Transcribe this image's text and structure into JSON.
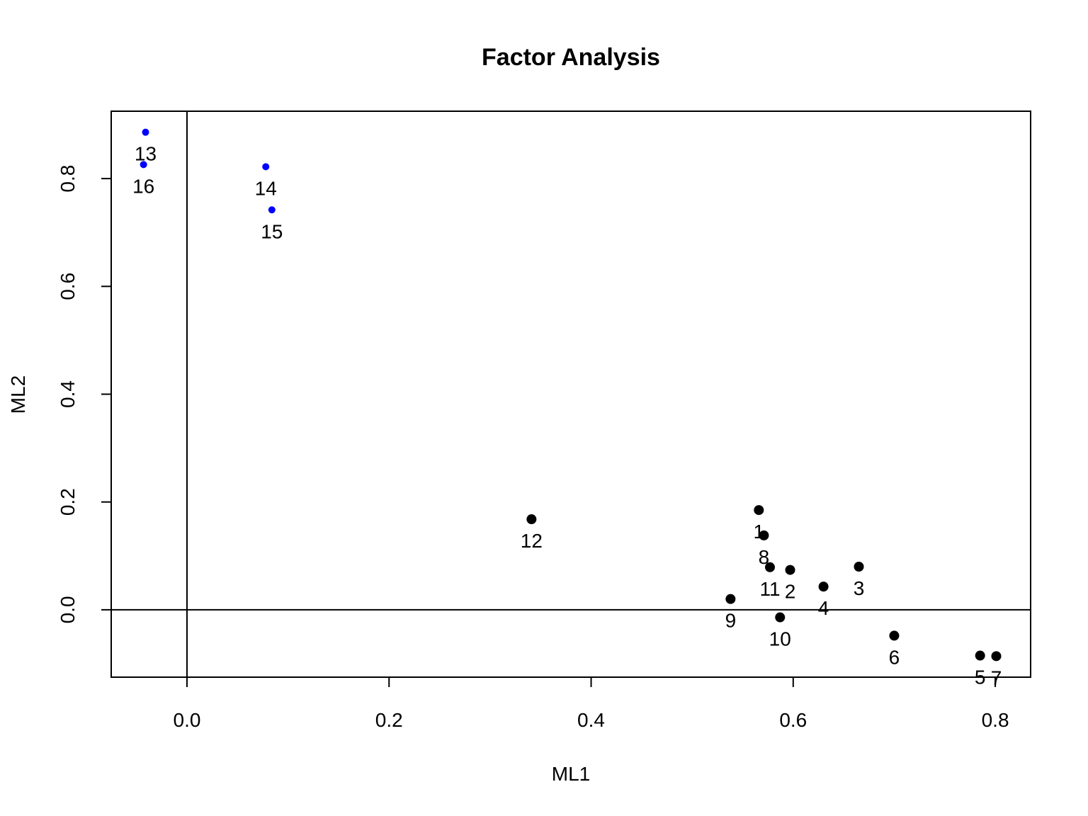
{
  "chart_data": {
    "type": "scatter",
    "title": "Factor Analysis",
    "xlabel": "ML1",
    "ylabel": "ML2",
    "xlim": [
      -0.075,
      0.835
    ],
    "ylim": [
      -0.125,
      0.925
    ],
    "x_ticks": [
      0.0,
      0.2,
      0.4,
      0.6,
      0.8
    ],
    "x_tick_labels": [
      "0.0",
      "0.2",
      "0.4",
      "0.6",
      "0.8"
    ],
    "y_ticks": [
      0.0,
      0.2,
      0.4,
      0.6,
      0.8
    ],
    "y_tick_labels": [
      "0.0",
      "0.2",
      "0.4",
      "0.6",
      "0.8"
    ],
    "reference_lines": {
      "x": 0,
      "y": 0
    },
    "grid": false,
    "colors": {
      "group1": "#000000",
      "group2": "#0000ff",
      "axes": "#000000"
    },
    "points": [
      {
        "label": "1",
        "x": 0.566,
        "y": 0.185,
        "group": "group1"
      },
      {
        "label": "2",
        "x": 0.597,
        "y": 0.074,
        "group": "group1"
      },
      {
        "label": "3",
        "x": 0.665,
        "y": 0.08,
        "group": "group1"
      },
      {
        "label": "4",
        "x": 0.63,
        "y": 0.043,
        "group": "group1"
      },
      {
        "label": "5",
        "x": 0.785,
        "y": -0.085,
        "group": "group1"
      },
      {
        "label": "6",
        "x": 0.7,
        "y": -0.048,
        "group": "group1"
      },
      {
        "label": "7",
        "x": 0.801,
        "y": -0.086,
        "group": "group1"
      },
      {
        "label": "8",
        "x": 0.571,
        "y": 0.138,
        "group": "group1"
      },
      {
        "label": "9",
        "x": 0.538,
        "y": 0.02,
        "group": "group1"
      },
      {
        "label": "10",
        "x": 0.587,
        "y": -0.014,
        "group": "group1"
      },
      {
        "label": "11",
        "x": 0.577,
        "y": 0.079,
        "group": "group1"
      },
      {
        "label": "12",
        "x": 0.341,
        "y": 0.168,
        "group": "group1"
      },
      {
        "label": "13",
        "x": -0.041,
        "y": 0.886,
        "group": "group2"
      },
      {
        "label": "14",
        "x": 0.078,
        "y": 0.822,
        "group": "group2"
      },
      {
        "label": "15",
        "x": 0.084,
        "y": 0.742,
        "group": "group2"
      },
      {
        "label": "16",
        "x": -0.043,
        "y": 0.826,
        "group": "group2"
      }
    ]
  }
}
